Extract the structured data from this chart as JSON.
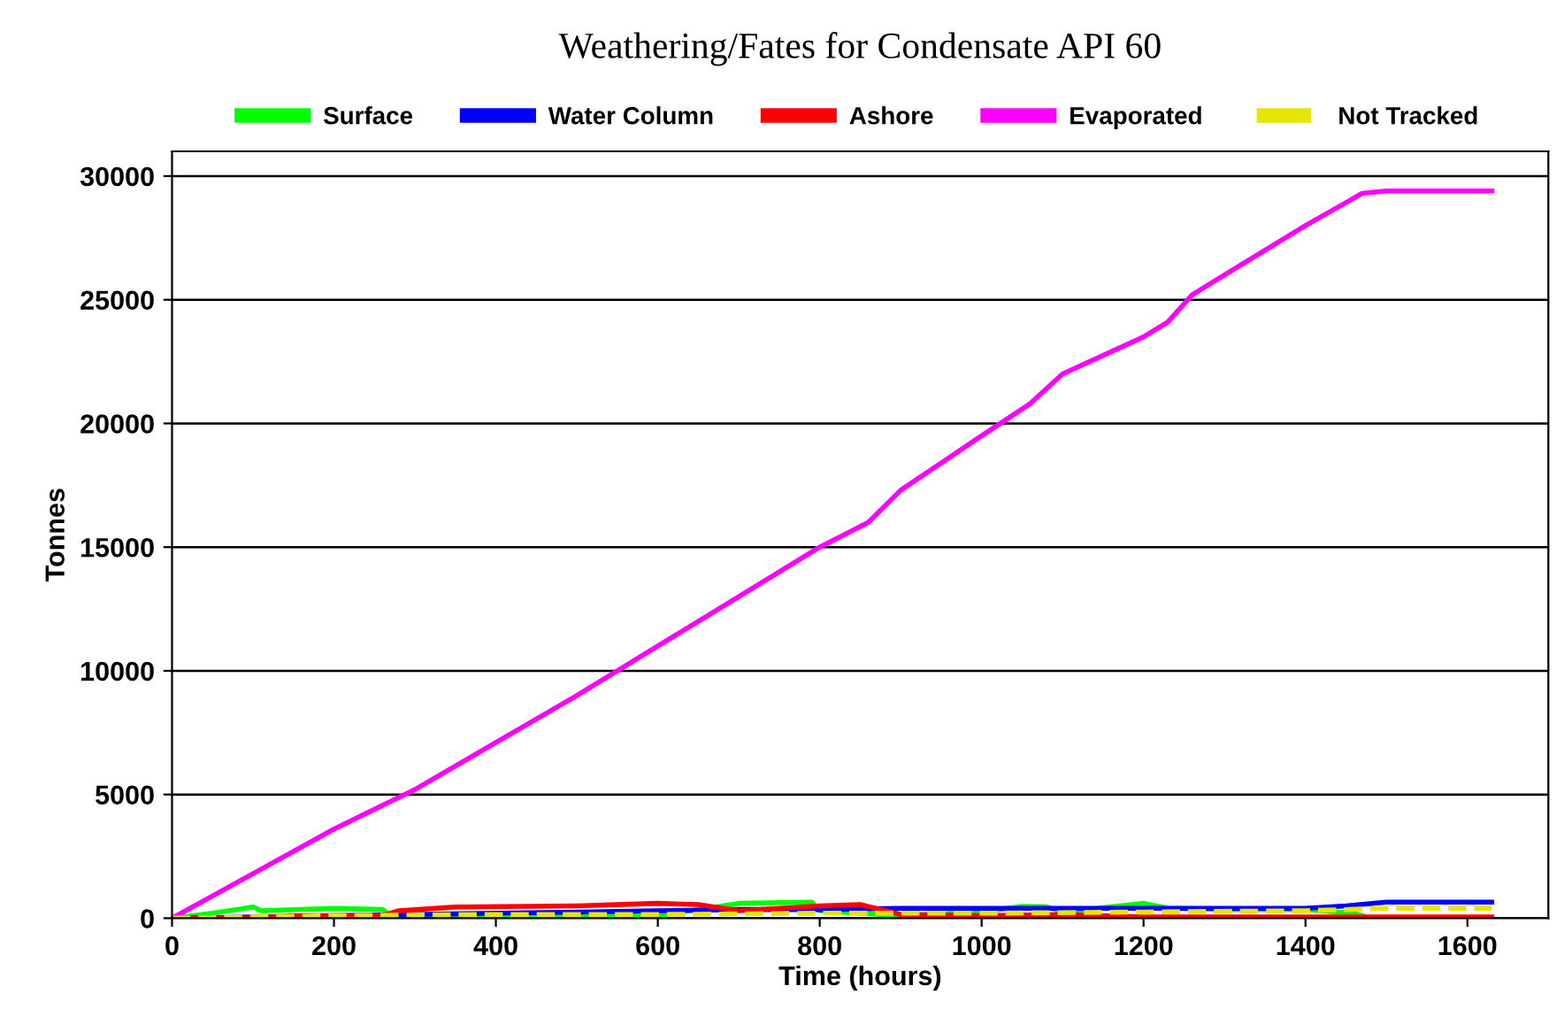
{
  "chart_data": {
    "type": "line",
    "title": "Weathering/Fates for Condensate API 60",
    "xlabel": "Time (hours)",
    "ylabel": "Tonnes",
    "xlim": [
      0,
      1700
    ],
    "xticks": [
      0,
      200,
      400,
      600,
      800,
      1000,
      1200,
      1400,
      1600
    ],
    "ylim": [
      0,
      31000
    ],
    "yticks": [
      0,
      5000,
      10000,
      15000,
      20000,
      25000,
      30000
    ],
    "grid": "y",
    "legend": "top",
    "marker": "none",
    "series": [
      {
        "name": "Surface",
        "color": "#00ff00",
        "line_style": "solid",
        "x": [
          0,
          50,
          100,
          110,
          200,
          260,
          270,
          400,
          600,
          700,
          790,
          800,
          900,
          1000,
          1050,
          1080,
          1100,
          1200,
          1230,
          1300,
          1400,
          1460,
          1480,
          1630
        ],
        "values": [
          0,
          200,
          450,
          300,
          400,
          350,
          100,
          50,
          100,
          600,
          650,
          300,
          100,
          250,
          480,
          460,
          250,
          600,
          400,
          350,
          350,
          200,
          0,
          0
        ]
      },
      {
        "name": "Water Column",
        "color": "#0000ff",
        "line_style": "solid",
        "x": [
          0,
          100,
          200,
          300,
          400,
          500,
          600,
          700,
          800,
          900,
          1000,
          1100,
          1200,
          1300,
          1400,
          1450,
          1500,
          1630
        ],
        "values": [
          0,
          50,
          100,
          150,
          200,
          250,
          300,
          350,
          350,
          400,
          400,
          400,
          400,
          400,
          400,
          500,
          650,
          650
        ]
      },
      {
        "name": "Ashore",
        "color": "#ff0000",
        "line_style": "solid",
        "x": [
          0,
          100,
          150,
          260,
          280,
          350,
          500,
          600,
          650,
          700,
          800,
          850,
          900,
          1000,
          1100,
          1200,
          1300,
          1400,
          1630
        ],
        "values": [
          0,
          0,
          100,
          100,
          300,
          450,
          500,
          600,
          550,
          300,
          500,
          550,
          150,
          100,
          150,
          50,
          50,
          50,
          50
        ]
      },
      {
        "name": "Evaporated",
        "color": "#ff00ff",
        "line_style": "solid",
        "x": [
          0,
          100,
          200,
          300,
          400,
          500,
          600,
          700,
          800,
          860,
          900,
          1000,
          1060,
          1100,
          1200,
          1230,
          1260,
          1300,
          1400,
          1470,
          1500,
          1630
        ],
        "values": [
          0,
          1800,
          3600,
          5200,
          7100,
          9000,
          11000,
          13000,
          15000,
          16000,
          17300,
          19500,
          20800,
          22000,
          23500,
          24100,
          25200,
          26000,
          28000,
          29300,
          29400,
          29400
        ]
      },
      {
        "name": "Not Tracked",
        "color": "#e6e600",
        "line_style": "dashed",
        "x": [
          0,
          200,
          400,
          600,
          800,
          1000,
          1200,
          1400,
          1500,
          1630
        ],
        "values": [
          0,
          100,
          150,
          150,
          200,
          200,
          250,
          300,
          400,
          400
        ]
      }
    ]
  }
}
